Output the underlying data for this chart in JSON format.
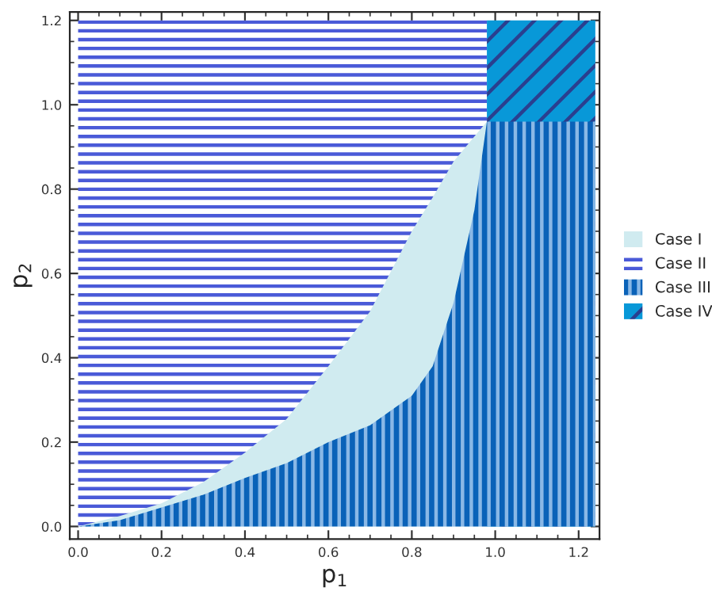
{
  "chart_data": {
    "type": "area",
    "xlabel": "p$_{1}$",
    "ylabel": "p$_{2}$",
    "series": [
      {
        "name": "Case I",
        "color": "#d0ebf0",
        "x": [
          0,
          0.1,
          0.2,
          0.3,
          0.4,
          0.5,
          0.6,
          0.7,
          0.8,
          0.85,
          0.9,
          0.95,
          0.98
        ],
        "values": [
          0,
          0.025,
          0.055,
          0.105,
          0.175,
          0.255,
          0.38,
          0.51,
          0.7,
          0.78,
          0.865,
          0.925,
          0.96
        ]
      },
      {
        "name": "Case II",
        "color": "#4a5ad8",
        "x": [
          0,
          0.98
        ],
        "values": [
          1.2,
          1.2
        ]
      },
      {
        "name": "Case III",
        "color": "#0a62b8",
        "x": [
          0,
          0.1,
          0.2,
          0.3,
          0.4,
          0.5,
          0.6,
          0.7,
          0.8,
          0.85,
          0.9,
          0.95,
          0.98,
          1.24
        ],
        "values": [
          0,
          0.015,
          0.045,
          0.075,
          0.115,
          0.15,
          0.2,
          0.24,
          0.31,
          0.38,
          0.53,
          0.75,
          0.96,
          0.96
        ]
      },
      {
        "name": "Case IV",
        "color": "#0898d8",
        "x": [
          0.98,
          1.24
        ],
        "values": [
          1.2,
          1.2
        ]
      }
    ],
    "xlim": [
      -0.02,
      1.25
    ],
    "ylim": [
      -0.03,
      1.22
    ],
    "xticks": [
      {
        "value": 0,
        "label": "0.0"
      },
      {
        "value": 0.2,
        "label": "0.2"
      },
      {
        "value": 0.4,
        "label": "0.4"
      },
      {
        "value": 0.6,
        "label": "0.6"
      },
      {
        "value": 0.8,
        "label": "0.8"
      },
      {
        "value": 1.0,
        "label": "1.0"
      },
      {
        "value": 1.2,
        "label": "1.2"
      }
    ],
    "yticks": [
      {
        "value": 0,
        "label": "0.0"
      },
      {
        "value": 0.2,
        "label": "0.2"
      },
      {
        "value": 0.4,
        "label": "0.4"
      },
      {
        "value": 0.6,
        "label": "0.6"
      },
      {
        "value": 0.8,
        "label": "0.8"
      },
      {
        "value": 1.0,
        "label": "1.0"
      },
      {
        "value": 1.2,
        "label": "1.2"
      }
    ],
    "legend": "right",
    "grid": false
  }
}
